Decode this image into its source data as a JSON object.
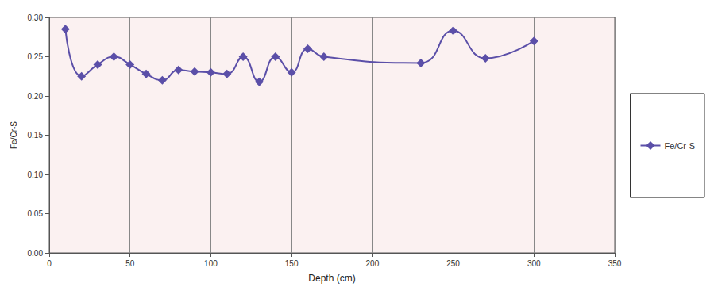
{
  "chart_data": {
    "type": "line",
    "x_label": "Depth (cm)",
    "y_label": "Fe/Cr-S",
    "series": [
      {
        "name": "Fe/Cr-S",
        "color": "#5b4fa8",
        "marker": "diamond",
        "x": [
          10,
          20,
          30,
          40,
          50,
          60,
          70,
          80,
          90,
          100,
          110,
          120,
          130,
          140,
          150,
          160,
          170,
          230,
          250,
          270,
          300
        ],
        "values": [
          0.285,
          0.225,
          0.24,
          0.25,
          0.24,
          0.228,
          0.22,
          0.233,
          0.231,
          0.23,
          0.228,
          0.25,
          0.218,
          0.25,
          0.23,
          0.26,
          0.25,
          0.242,
          0.283,
          0.248,
          0.27
        ]
      }
    ],
    "xlim": [
      0,
      350
    ],
    "xticks": [
      0,
      50,
      100,
      150,
      200,
      250,
      300,
      350
    ],
    "ylim": [
      0,
      0.3
    ],
    "yticks": [
      {
        "value": 0,
        "label": "0.00"
      },
      {
        "value": 0.05,
        "label": "0.05"
      },
      {
        "value": 0.1,
        "label": "0.10"
      },
      {
        "value": 0.15,
        "label": "0.15"
      },
      {
        "value": 0.2,
        "label": "0.20"
      },
      {
        "value": 0.25,
        "label": "0.25"
      },
      {
        "value": 0.3,
        "label": "0.30"
      }
    ],
    "grid": "x",
    "legend": "right"
  }
}
